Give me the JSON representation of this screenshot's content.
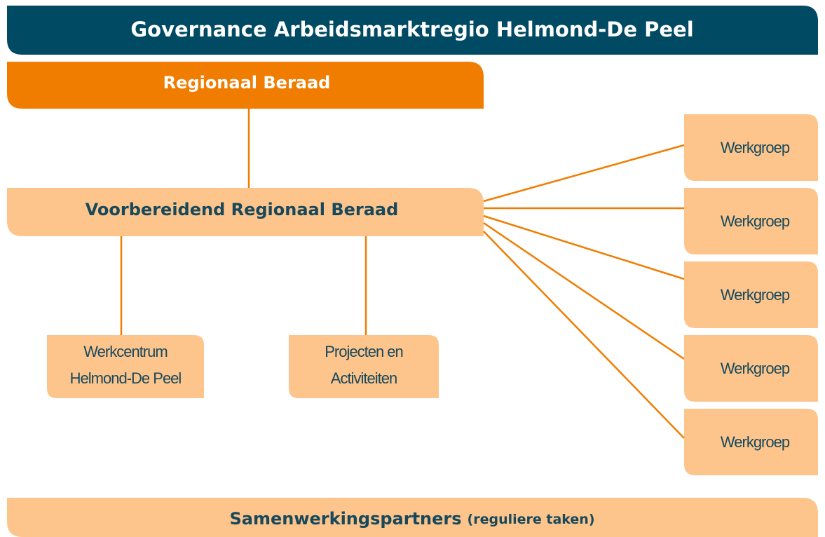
{
  "header": {
    "title": "Governance Arbeidsmarktregio Helmond-De Peel"
  },
  "board": {
    "label": "Regionaal Beraad"
  },
  "prep_board": {
    "label": "Voorbereidend Regionaal Beraad"
  },
  "units": [
    {
      "lines": [
        "Werkcentrum",
        "Helmond-De Peel"
      ]
    },
    {
      "lines": [
        "Projecten en",
        "Activiteiten"
      ]
    }
  ],
  "workgroups": [
    "Werkgroep",
    "Werkgroep",
    "Werkgroep",
    "Werkgroep",
    "Werkgroep"
  ],
  "footer": {
    "label": "Samenwerkingspartners",
    "note": "(reguliere taken)"
  }
}
